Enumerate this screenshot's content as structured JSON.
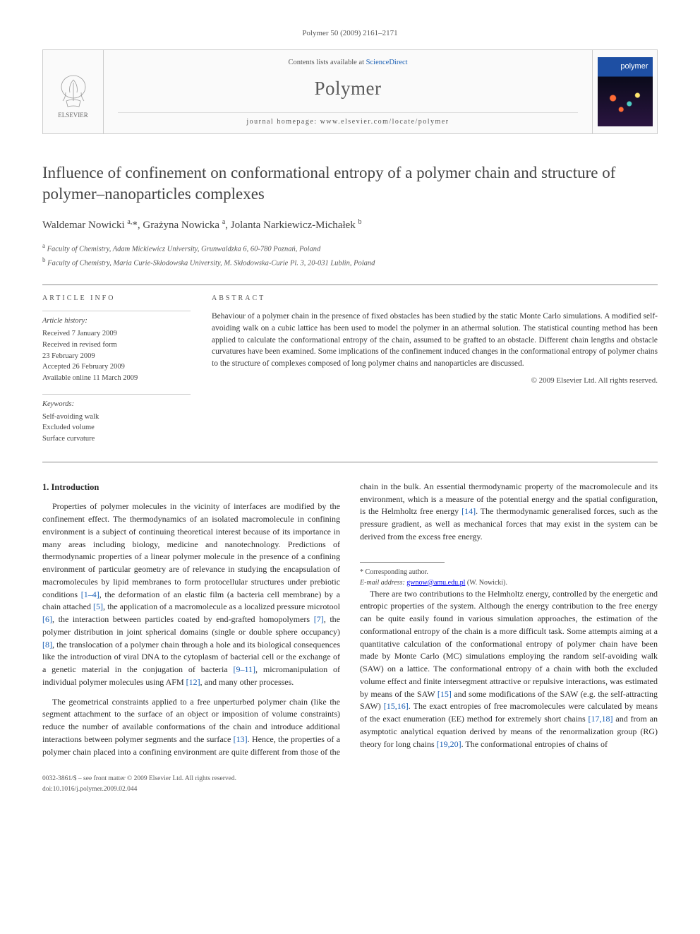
{
  "journal_ref": "Polymer 50 (2009) 2161–2171",
  "header": {
    "contents_prefix": "Contents lists available at ",
    "contents_link": "ScienceDirect",
    "journal_name": "Polymer",
    "homepage_prefix": "journal homepage: ",
    "homepage_url": "www.elsevier.com/locate/polymer",
    "publisher_label": "ELSEVIER",
    "cover_label": "polymer"
  },
  "title": "Influence of confinement on conformational entropy of a polymer chain and structure of polymer–nanoparticles complexes",
  "authors_html": "Waldemar Nowicki <sup>a,</sup><span class='star'>*</span>, Grażyna Nowicka <sup>a</sup>, Jolanta Narkiewicz-Michałek <sup>b</sup>",
  "affiliations": {
    "a": "Faculty of Chemistry, Adam Mickiewicz University, Grunwaldzka 6, 60-780 Poznań, Poland",
    "b": "Faculty of Chemistry, Maria Curie-Skłodowska University, M. Skłodowska-Curie Pl. 3, 20-031 Lublin, Poland"
  },
  "labels": {
    "article_info": "ARTICLE INFO",
    "abstract": "ABSTRACT",
    "history": "Article history:",
    "keywords": "Keywords:"
  },
  "history": {
    "received": "Received 7 January 2009",
    "revised1": "Received in revised form",
    "revised2": "23 February 2009",
    "accepted": "Accepted 26 February 2009",
    "online": "Available online 11 March 2009"
  },
  "keywords": [
    "Self-avoiding walk",
    "Excluded volume",
    "Surface curvature"
  ],
  "abstract": "Behaviour of a polymer chain in the presence of fixed obstacles has been studied by the static Monte Carlo simulations. A modified self-avoiding walk on a cubic lattice has been used to model the polymer in an athermal solution. The statistical counting method has been applied to calculate the conformational entropy of the chain, assumed to be grafted to an obstacle. Different chain lengths and obstacle curvatures have been examined. Some implications of the confinement induced changes in the conformational entropy of polymer chains to the structure of complexes composed of long polymer chains and nanoparticles are discussed.",
  "copyright": "© 2009 Elsevier Ltd. All rights reserved.",
  "section1_heading": "1. Introduction",
  "para1": "Properties of polymer molecules in the vicinity of interfaces are modified by the confinement effect. The thermodynamics of an isolated macromolecule in confining environment is a subject of continuing theoretical interest because of its importance in many areas including biology, medicine and nanotechnology. Predictions of thermodynamic properties of a linear polymer molecule in the presence of a confining environment of particular geometry are of relevance in studying the encapsulation of macromolecules by lipid membranes to form protocellular structures under prebiotic conditions [1–4], the deformation of an elastic film (a bacteria cell membrane) by a chain attached [5], the application of a macromolecule as a localized pressure microtool [6], the interaction between particles coated by end-grafted homopolymers [7], the polymer distribution in joint spherical domains (single or double sphere occupancy) [8], the translocation of a polymer chain through a hole and its biological consequences like the introduction of viral DNA to the cytoplasm of bacterial cell or the exchange of a genetic material in the conjugation of bacteria [9–11], micromanipulation of individual polymer molecules using AFM [12], and many other processes.",
  "para2": "The geometrical constraints applied to a free unperturbed polymer chain (like the segment attachment to the surface of an object or imposition of volume constraints) reduce the number of available conformations of the chain and introduce additional interactions between polymer segments and the surface [13]. Hence, the properties of a polymer chain placed into a confining environment are quite different from those of the chain in the bulk. An essential thermodynamic property of the macromolecule and its environment, which is a measure of the potential energy and the spatial configuration, is the Helmholtz free energy [14]. The thermodynamic generalised forces, such as the pressure gradient, as well as mechanical forces that may exist in the system can be derived from the excess free energy.",
  "para3": "There are two contributions to the Helmholtz energy, controlled by the energetic and entropic properties of the system. Although the energy contribution to the free energy can be quite easily found in various simulation approaches, the estimation of the conformational entropy of the chain is a more difficult task. Some attempts aiming at a quantitative calculation of the conformational entropy of polymer chain have been made by Monte Carlo (MC) simulations employing the random self-avoiding walk (SAW) on a lattice. The conformational entropy of a chain with both the excluded volume effect and finite intersegment attractive or repulsive interactions, was estimated by means of the SAW [15] and some modifications of the SAW (e.g. the self-attracting SAW) [15,16]. The exact entropies of free macromolecules were calculated by means of the exact enumeration (EE) method for extremely short chains [17,18] and from an asymptotic analytical equation derived by means of the renormalization group (RG) theory for long chains [19,20]. The conformational entropies of chains of",
  "footnote": {
    "star": "* Corresponding author.",
    "email_label": "E-mail address:",
    "email": "gwnow@amu.edu.pl",
    "email_who": "(W. Nowicki)."
  },
  "footer": {
    "line1": "0032-3861/$ – see front matter © 2009 Elsevier Ltd. All rights reserved.",
    "line2": "doi:10.1016/j.polymer.2009.02.044"
  }
}
